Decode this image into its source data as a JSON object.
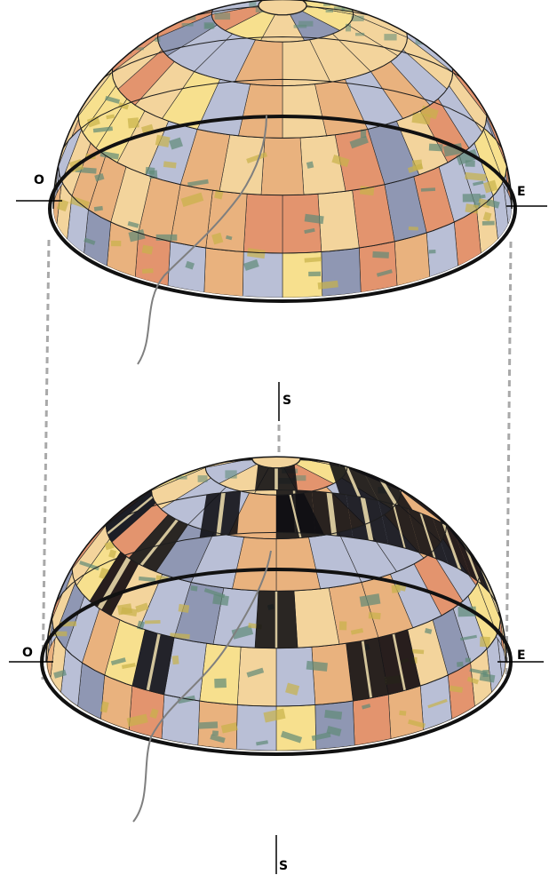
{
  "domes": [
    {
      "id": "upper",
      "labels": {
        "west": "O",
        "east": "E",
        "south": "S"
      },
      "shading": "none"
    },
    {
      "id": "lower",
      "labels": {
        "west": "O",
        "east": "E",
        "south": "S"
      },
      "shading": "shadow-bands"
    }
  ],
  "palette": {
    "sand": "#f3d49c",
    "peach": "#e9b27e",
    "orange": "#e3946e",
    "lavender": "#b9bfd6",
    "slate": "#8f97b3",
    "pale-yellow": "#f7e08e",
    "urban-green": "#5f8a78",
    "field-yellow": "#c8b24a",
    "shadow": "#0e0e12",
    "outline": "#111111",
    "guide": "#a9a9a9"
  }
}
